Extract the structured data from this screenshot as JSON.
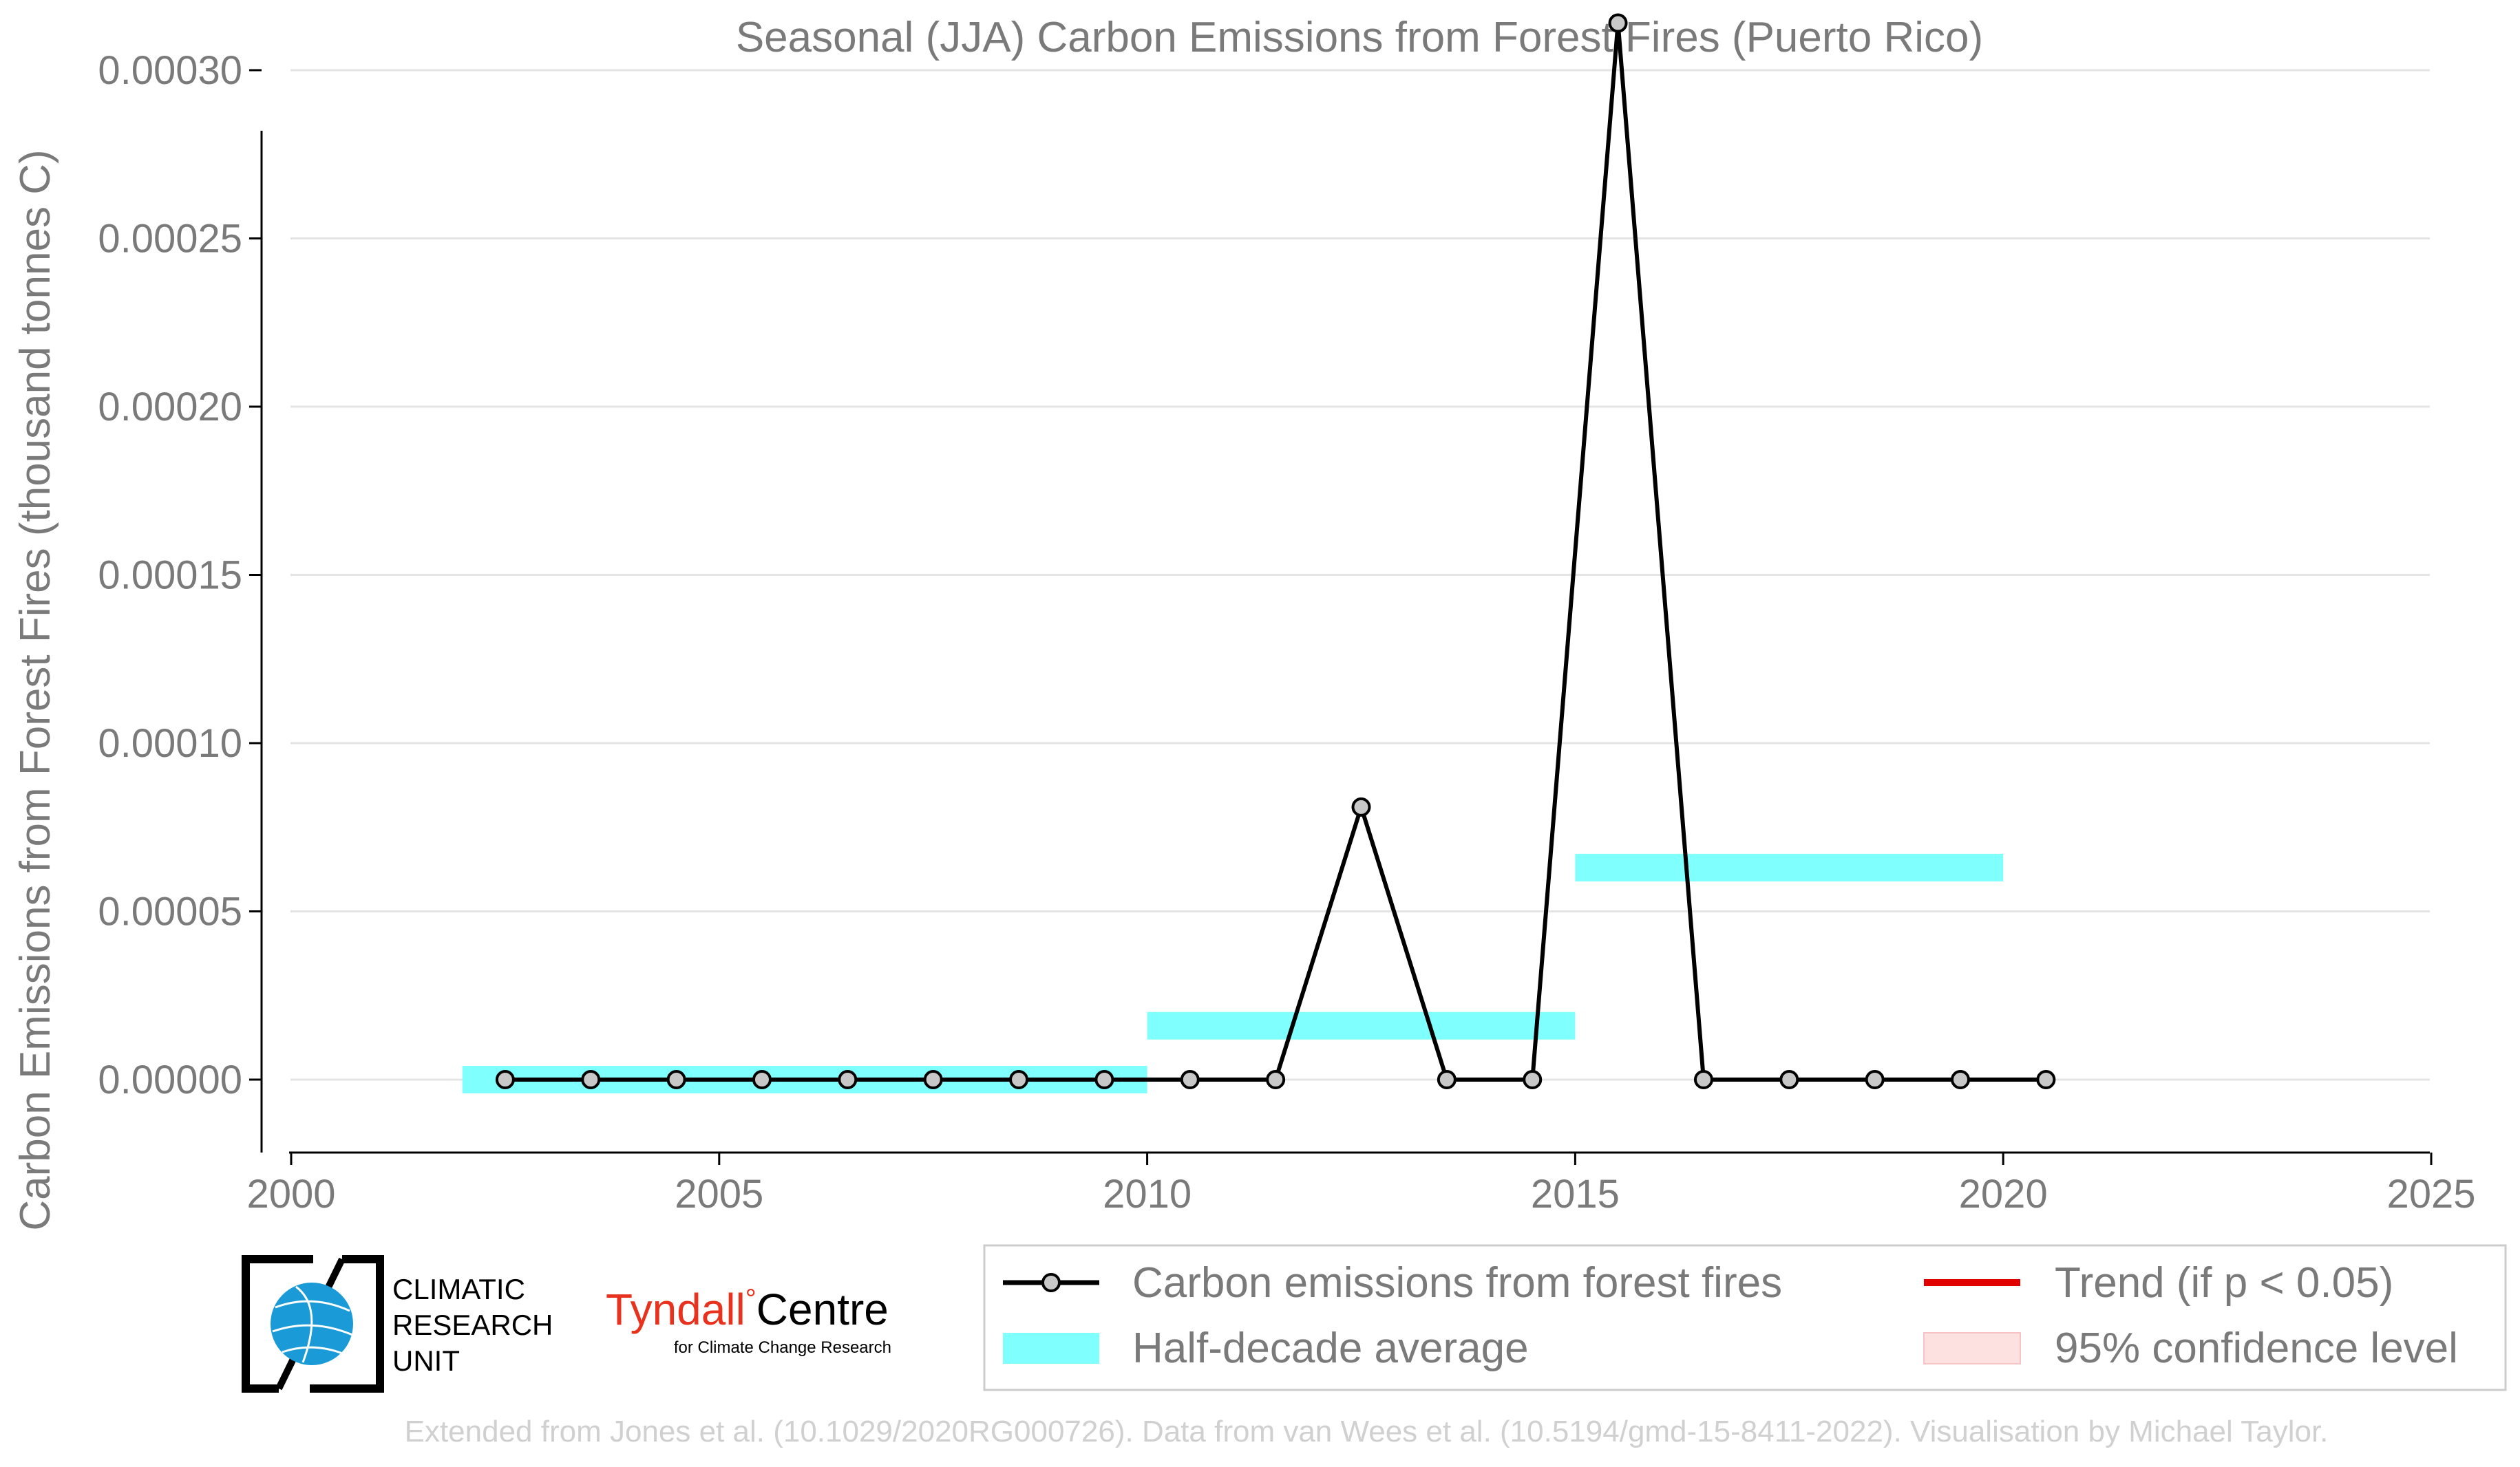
{
  "chart_data": {
    "type": "line",
    "title": "Seasonal (JJA) Carbon Emissions from Forest Fires (Puerto Rico)",
    "xlabel": "",
    "ylabel": "Carbon Emissions from Forest Fires (thousand tonnes C)",
    "xlim": [
      2000,
      2025
    ],
    "ylim": [
      -2.5e-05,
      0.000325
    ],
    "x_ticks": [
      2000,
      2005,
      2010,
      2015,
      2020,
      2025
    ],
    "y_ticks": [
      0.0,
      5e-05,
      0.0001,
      0.00015,
      0.0002,
      0.00025,
      0.0003
    ],
    "y_tick_labels": [
      "0.00000",
      "0.00005",
      "0.00010",
      "0.00015",
      "0.00020",
      "0.00025",
      "0.00030"
    ],
    "grid": true,
    "series": [
      {
        "name": "Carbon emissions from forest fires",
        "color": "#000000",
        "marker_fill": "#c8c8c8",
        "x": [
          2002.5,
          2003.5,
          2004.5,
          2005.5,
          2006.5,
          2007.5,
          2008.5,
          2009.5,
          2010.5,
          2011.5,
          2012.5,
          2013.5,
          2014.5,
          2015.5,
          2016.5,
          2017.5,
          2018.5,
          2019.5,
          2020.5
        ],
        "y": [
          0,
          0,
          0,
          0,
          0,
          0,
          0,
          0,
          0,
          0,
          8.1e-05,
          0,
          0,
          0.000314,
          0,
          0,
          0,
          0,
          0
        ]
      }
    ],
    "half_decade_average": {
      "name": "Half-decade average",
      "color": "#80ffff",
      "segments": [
        {
          "x_start": 2002,
          "x_end": 2010,
          "value": 0
        },
        {
          "x_start": 2010,
          "x_end": 2015,
          "value": 1.6e-05
        },
        {
          "x_start": 2015,
          "x_end": 2020,
          "value": 6.3e-05
        }
      ]
    },
    "legend": {
      "placement": "bottom-right",
      "entries": [
        {
          "label": "Carbon emissions from forest fires",
          "kind": "line-marker",
          "color": "#000000"
        },
        {
          "label": "Trend (if p < 0.05)",
          "kind": "line",
          "color": "#e00000"
        },
        {
          "label": "Half-decade average",
          "kind": "band",
          "color": "#80ffff"
        },
        {
          "label": "95% confidence level",
          "kind": "band",
          "color": "#fde0e0"
        }
      ]
    }
  },
  "logos": {
    "cru": {
      "lines": [
        "CLIMATIC",
        "RESEARCH",
        "UNIT"
      ],
      "icon": "globe-icon"
    },
    "tyndall": {
      "name_part1": "Tyndall",
      "degree": "°",
      "name_part2": "Centre",
      "tagline": "for Climate Change Research",
      "color": "#e8321e"
    }
  },
  "footer": "Extended from Jones et al. (10.1029/2020RG000726). Data from van Wees et al. (10.5194/gmd-15-8411-2022). Visualisation by Michael Taylor."
}
